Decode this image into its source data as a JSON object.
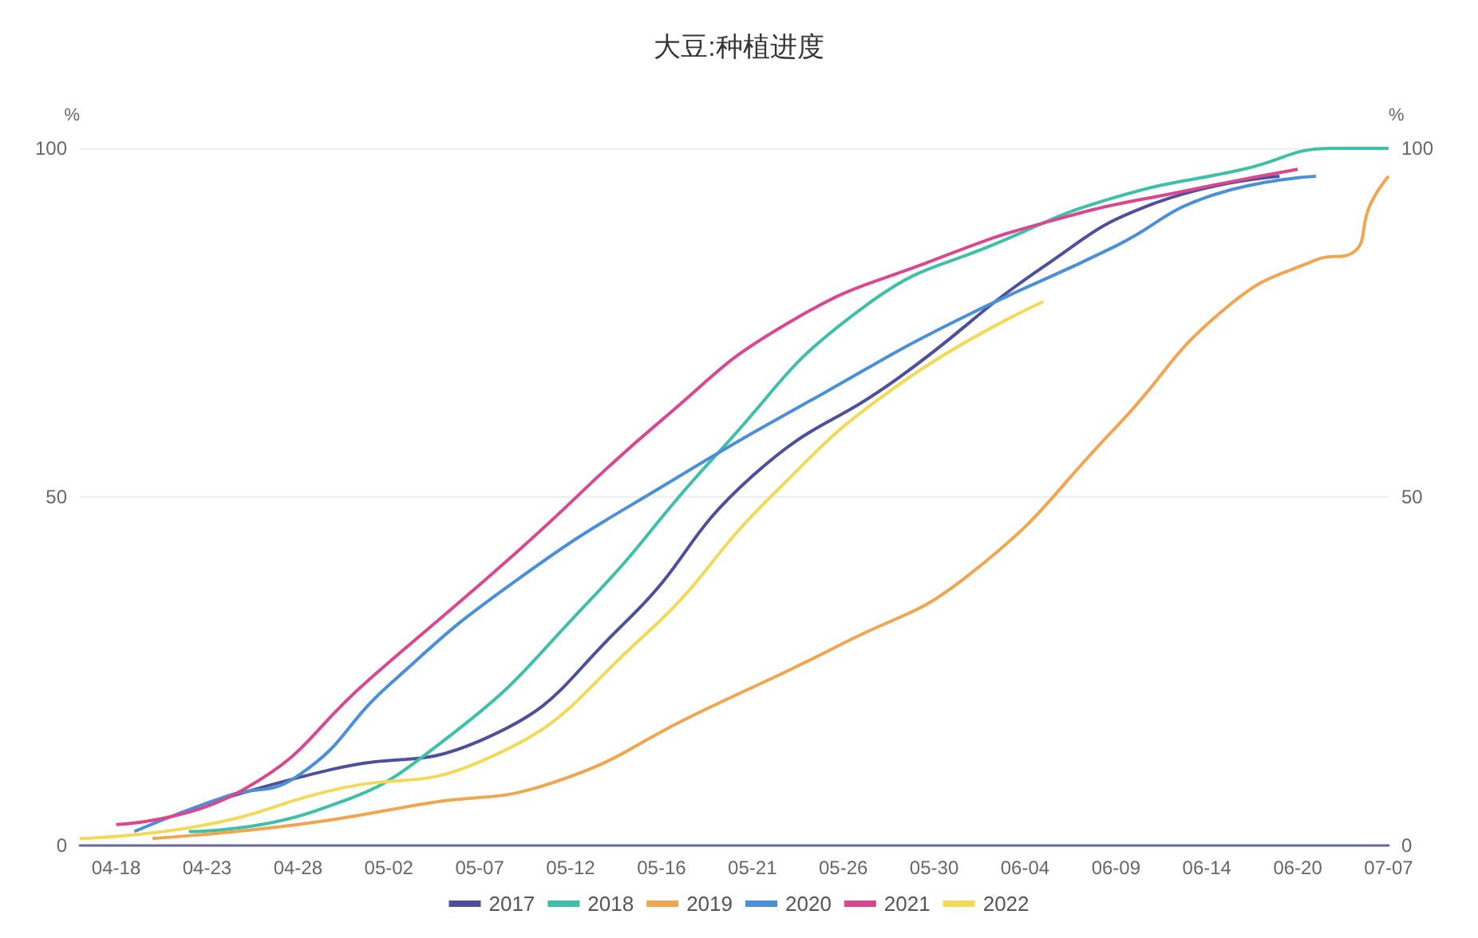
{
  "chart_data": {
    "type": "line",
    "title": "大豆:种植进度",
    "ylabel": "%",
    "y2label": "%",
    "categories": [
      null,
      null,
      "04-18",
      null,
      null,
      null,
      null,
      "04-23",
      null,
      null,
      null,
      null,
      "04-28",
      null,
      null,
      null,
      null,
      "05-02",
      null,
      null,
      null,
      null,
      "05-07",
      null,
      null,
      null,
      null,
      "05-12",
      null,
      null,
      null,
      null,
      "05-16",
      null,
      null,
      null,
      null,
      "05-21",
      null,
      null,
      null,
      null,
      "05-26",
      null,
      null,
      null,
      null,
      "05-30",
      null,
      null,
      null,
      null,
      "06-04",
      null,
      null,
      null,
      null,
      "06-09",
      null,
      null,
      null,
      null,
      "06-14",
      null,
      null,
      null,
      null,
      "06-20",
      null,
      null,
      null,
      null,
      "07-07"
    ],
    "series": [
      {
        "name": "2017",
        "color": "#4d4f9a",
        "values": [
          null,
          null,
          null,
          null,
          null,
          null,
          null,
          6,
          null,
          null,
          null,
          null,
          null,
          null,
          11,
          null,
          null,
          null,
          null,
          null,
          null,
          null,
          15,
          null,
          null,
          null,
          null,
          null,
          null,
          null,
          32,
          null,
          null,
          null,
          null,
          null,
          null,
          53,
          null,
          null,
          null,
          null,
          null,
          null,
          null,
          67,
          null,
          null,
          null,
          null,
          null,
          null,
          null,
          83,
          null,
          null,
          null,
          null,
          null,
          92,
          null,
          null,
          null,
          null,
          null,
          null,
          96,
          null,
          null,
          null,
          null,
          null,
          null
        ]
      },
      {
        "name": "2018",
        "color": "#3fbfa8",
        "values": [
          null,
          null,
          null,
          null,
          null,
          null,
          2,
          null,
          null,
          null,
          null,
          null,
          null,
          5,
          null,
          null,
          null,
          null,
          null,
          null,
          15,
          null,
          null,
          null,
          null,
          null,
          null,
          null,
          35,
          null,
          null,
          null,
          null,
          null,
          null,
          56,
          null,
          null,
          null,
          null,
          null,
          null,
          null,
          77,
          null,
          null,
          null,
          null,
          null,
          null,
          null,
          87,
          null,
          null,
          null,
          null,
          null,
          93,
          null,
          null,
          null,
          null,
          null,
          null,
          97,
          null,
          null,
          null,
          null,
          100,
          null,
          null,
          100
        ]
      },
      {
        "name": "2019",
        "color": "#f0a550",
        "values": [
          null,
          null,
          null,
          null,
          1,
          null,
          null,
          null,
          null,
          null,
          null,
          null,
          3,
          null,
          null,
          null,
          null,
          null,
          null,
          6,
          null,
          null,
          null,
          null,
          null,
          null,
          9,
          null,
          null,
          null,
          null,
          null,
          null,
          null,
          19,
          null,
          null,
          null,
          null,
          null,
          null,
          null,
          29,
          null,
          null,
          null,
          null,
          null,
          null,
          39,
          null,
          null,
          null,
          null,
          null,
          null,
          null,
          60,
          null,
          null,
          null,
          null,
          null,
          77,
          null,
          null,
          null,
          null,
          84,
          null,
          85,
          92,
          96
        ]
      },
      {
        "name": "2020",
        "color": "#4a8fd8",
        "values": [
          null,
          null,
          null,
          2,
          null,
          null,
          null,
          null,
          7,
          null,
          null,
          null,
          10,
          null,
          null,
          null,
          null,
          23,
          null,
          null,
          null,
          null,
          null,
          null,
          38,
          null,
          null,
          null,
          null,
          null,
          null,
          null,
          null,
          53,
          null,
          null,
          null,
          null,
          null,
          null,
          null,
          65,
          null,
          null,
          null,
          null,
          null,
          null,
          75,
          null,
          null,
          null,
          null,
          null,
          null,
          null,
          null,
          86,
          null,
          null,
          null,
          null,
          93,
          null,
          null,
          null,
          null,
          null,
          96,
          null,
          null,
          null,
          null
        ]
      },
      {
        "name": "2021",
        "color": "#d9488f",
        "values": [
          null,
          null,
          3,
          null,
          null,
          null,
          null,
          null,
          null,
          8,
          null,
          null,
          null,
          null,
          null,
          null,
          24,
          null,
          null,
          null,
          null,
          null,
          null,
          null,
          42,
          null,
          null,
          null,
          null,
          null,
          null,
          null,
          61,
          null,
          null,
          null,
          null,
          null,
          null,
          75,
          null,
          null,
          null,
          null,
          null,
          null,
          null,
          84,
          null,
          null,
          null,
          null,
          null,
          null,
          90,
          null,
          null,
          null,
          null,
          null,
          null,
          94,
          null,
          null,
          null,
          null,
          null,
          97,
          null,
          null,
          null,
          null,
          null
        ]
      },
      {
        "name": "2022",
        "color": "#f2d957",
        "values": [
          1,
          null,
          null,
          null,
          null,
          null,
          null,
          3,
          null,
          null,
          null,
          null,
          null,
          null,
          8,
          null,
          null,
          null,
          null,
          null,
          null,
          null,
          12,
          null,
          null,
          null,
          null,
          null,
          null,
          null,
          null,
          30,
          null,
          null,
          null,
          null,
          null,
          null,
          50,
          null,
          null,
          null,
          null,
          null,
          null,
          66,
          null,
          null,
          null,
          null,
          null,
          null,
          null,
          78,
          null,
          null,
          null,
          null,
          null,
          null,
          null,
          null,
          null,
          null,
          null,
          null,
          null,
          null,
          null,
          null,
          null,
          null,
          null
        ]
      }
    ],
    "ylim": [
      0,
      100
    ],
    "yticks": [
      0,
      50,
      100
    ],
    "y2lim": [
      0,
      100
    ],
    "y2ticks": [
      0,
      50,
      100
    ],
    "grid": "y",
    "legend": "bottom",
    "marker": "none",
    "line_style": "solid"
  }
}
